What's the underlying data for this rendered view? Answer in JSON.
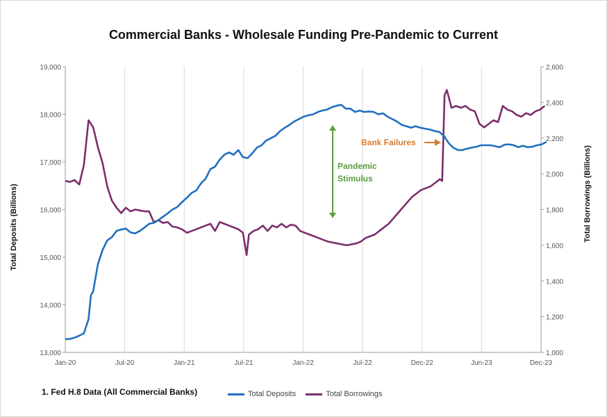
{
  "chart_data": {
    "type": "line",
    "title": "Commercial Banks - Wholesale Funding Pre-Pandemic to Current",
    "ylabel_left": "Total Deposits (Billions)",
    "ylabel_right": "Total Borrowings (Billions)",
    "footnote": "1. Fed H.8 Data (All Commercial Banks)",
    "x_ticks": [
      "Jan-20",
      "Jul-20",
      "Jan-21",
      "Jul-21",
      "Jan-22",
      "Jul-22",
      "Dec-22",
      "Jun-23",
      "Dec-23"
    ],
    "y_left": {
      "min": 13000,
      "max": 19000,
      "ticks": [
        "13,000",
        "14,000",
        "15,000",
        "16,000",
        "17,000",
        "18,000",
        "19,000"
      ]
    },
    "y_right": {
      "min": 1000,
      "max": 2600,
      "ticks": [
        "1,000",
        "1,200",
        "1,400",
        "1,600",
        "1,800",
        "2,000",
        "2,200",
        "2,400",
        "2,600"
      ]
    },
    "grid": "vertical",
    "legend": "bottom",
    "series": [
      {
        "name": "Total Deposits",
        "axis": "left",
        "color": "#1f6fbf",
        "points": [
          [
            "2020-01-01",
            13280
          ],
          [
            "2020-01-15",
            13280
          ],
          [
            "2020-01-29",
            13310
          ],
          [
            "2020-02-12",
            13350
          ],
          [
            "2020-02-26",
            13400
          ],
          [
            "2020-03-11",
            13700
          ],
          [
            "2020-03-18",
            14200
          ],
          [
            "2020-03-25",
            14280
          ],
          [
            "2020-04-08",
            14850
          ],
          [
            "2020-04-22",
            15150
          ],
          [
            "2020-05-06",
            15350
          ],
          [
            "2020-05-20",
            15420
          ],
          [
            "2020-06-03",
            15550
          ],
          [
            "2020-06-17",
            15580
          ],
          [
            "2020-07-01",
            15600
          ],
          [
            "2020-07-15",
            15520
          ],
          [
            "2020-07-29",
            15500
          ],
          [
            "2020-08-12",
            15550
          ],
          [
            "2020-08-26",
            15620
          ],
          [
            "2020-09-09",
            15700
          ],
          [
            "2020-09-23",
            15720
          ],
          [
            "2020-10-07",
            15780
          ],
          [
            "2020-10-21",
            15850
          ],
          [
            "2020-11-04",
            15920
          ],
          [
            "2020-11-18",
            16000
          ],
          [
            "2020-12-02",
            16050
          ],
          [
            "2020-12-16",
            16150
          ],
          [
            "2021-01-01",
            16250
          ],
          [
            "2021-01-15",
            16350
          ],
          [
            "2021-01-29",
            16400
          ],
          [
            "2021-02-12",
            16550
          ],
          [
            "2021-02-26",
            16650
          ],
          [
            "2021-03-12",
            16850
          ],
          [
            "2021-03-26",
            16900
          ],
          [
            "2021-04-09",
            17050
          ],
          [
            "2021-04-23",
            17150
          ],
          [
            "2021-05-07",
            17200
          ],
          [
            "2021-05-21",
            17150
          ],
          [
            "2021-06-04",
            17250
          ],
          [
            "2021-06-18",
            17100
          ],
          [
            "2021-07-02",
            17080
          ],
          [
            "2021-07-16",
            17180
          ],
          [
            "2021-07-30",
            17300
          ],
          [
            "2021-08-13",
            17350
          ],
          [
            "2021-08-27",
            17450
          ],
          [
            "2021-09-10",
            17500
          ],
          [
            "2021-09-24",
            17550
          ],
          [
            "2021-10-08",
            17650
          ],
          [
            "2021-10-22",
            17720
          ],
          [
            "2021-11-05",
            17780
          ],
          [
            "2021-11-19",
            17850
          ],
          [
            "2021-12-03",
            17900
          ],
          [
            "2021-12-17",
            17950
          ],
          [
            "2022-01-01",
            17980
          ],
          [
            "2022-01-15",
            18000
          ],
          [
            "2022-01-29",
            18050
          ],
          [
            "2022-02-12",
            18080
          ],
          [
            "2022-02-26",
            18100
          ],
          [
            "2022-03-12",
            18150
          ],
          [
            "2022-03-26",
            18180
          ],
          [
            "2022-04-09",
            18200
          ],
          [
            "2022-04-23",
            18120
          ],
          [
            "2022-05-07",
            18120
          ],
          [
            "2022-05-21",
            18050
          ],
          [
            "2022-06-04",
            18080
          ],
          [
            "2022-06-18",
            18050
          ],
          [
            "2022-07-02",
            18060
          ],
          [
            "2022-07-16",
            18050
          ],
          [
            "2022-07-30",
            18000
          ],
          [
            "2022-08-13",
            18020
          ],
          [
            "2022-08-27",
            17950
          ],
          [
            "2022-09-10",
            17900
          ],
          [
            "2022-09-24",
            17850
          ],
          [
            "2022-10-08",
            17780
          ],
          [
            "2022-10-22",
            17750
          ],
          [
            "2022-11-05",
            17720
          ],
          [
            "2022-11-19",
            17750
          ],
          [
            "2022-12-03",
            17720
          ],
          [
            "2022-12-17",
            17700
          ],
          [
            "2023-01-01",
            17680
          ],
          [
            "2023-01-15",
            17650
          ],
          [
            "2023-01-29",
            17630
          ],
          [
            "2023-02-12",
            17550
          ],
          [
            "2023-02-26",
            17400
          ],
          [
            "2023-03-12",
            17300
          ],
          [
            "2023-03-26",
            17250
          ],
          [
            "2023-04-09",
            17250
          ],
          [
            "2023-04-23",
            17280
          ],
          [
            "2023-05-07",
            17300
          ],
          [
            "2023-05-21",
            17320
          ],
          [
            "2023-06-04",
            17350
          ],
          [
            "2023-06-18",
            17350
          ],
          [
            "2023-07-02",
            17350
          ],
          [
            "2023-07-16",
            17330
          ],
          [
            "2023-07-30",
            17310
          ],
          [
            "2023-08-13",
            17360
          ],
          [
            "2023-08-27",
            17370
          ],
          [
            "2023-09-10",
            17350
          ],
          [
            "2023-09-24",
            17310
          ],
          [
            "2023-10-08",
            17340
          ],
          [
            "2023-10-22",
            17310
          ],
          [
            "2023-11-05",
            17320
          ],
          [
            "2023-11-19",
            17350
          ],
          [
            "2023-12-03",
            17370
          ],
          [
            "2023-12-17",
            17420
          ]
        ]
      },
      {
        "name": "Total Borrowings",
        "axis": "right",
        "color": "#7b2d6b",
        "points": [
          [
            "2020-01-01",
            1960
          ],
          [
            "2020-01-15",
            1955
          ],
          [
            "2020-01-29",
            1965
          ],
          [
            "2020-02-12",
            1940
          ],
          [
            "2020-02-26",
            2050
          ],
          [
            "2020-03-11",
            2300
          ],
          [
            "2020-03-25",
            2260
          ],
          [
            "2020-04-08",
            2150
          ],
          [
            "2020-04-22",
            2060
          ],
          [
            "2020-05-06",
            1930
          ],
          [
            "2020-05-20",
            1850
          ],
          [
            "2020-06-03",
            1810
          ],
          [
            "2020-06-17",
            1780
          ],
          [
            "2020-07-01",
            1810
          ],
          [
            "2020-07-15",
            1790
          ],
          [
            "2020-07-29",
            1800
          ],
          [
            "2020-08-12",
            1795
          ],
          [
            "2020-08-26",
            1790
          ],
          [
            "2020-09-09",
            1790
          ],
          [
            "2020-09-23",
            1730
          ],
          [
            "2020-10-07",
            1740
          ],
          [
            "2020-10-21",
            1725
          ],
          [
            "2020-11-04",
            1730
          ],
          [
            "2020-11-18",
            1705
          ],
          [
            "2020-12-02",
            1700
          ],
          [
            "2020-12-16",
            1690
          ],
          [
            "2021-01-01",
            1670
          ],
          [
            "2021-01-15",
            1680
          ],
          [
            "2021-01-29",
            1690
          ],
          [
            "2021-02-12",
            1700
          ],
          [
            "2021-02-26",
            1710
          ],
          [
            "2021-03-12",
            1720
          ],
          [
            "2021-03-26",
            1680
          ],
          [
            "2021-04-09",
            1730
          ],
          [
            "2021-04-23",
            1720
          ],
          [
            "2021-05-07",
            1710
          ],
          [
            "2021-05-21",
            1700
          ],
          [
            "2021-06-04",
            1690
          ],
          [
            "2021-06-18",
            1670
          ],
          [
            "2021-06-29",
            1545
          ],
          [
            "2021-07-06",
            1660
          ],
          [
            "2021-07-20",
            1680
          ],
          [
            "2021-08-03",
            1690
          ],
          [
            "2021-08-17",
            1710
          ],
          [
            "2021-08-31",
            1680
          ],
          [
            "2021-09-14",
            1710
          ],
          [
            "2021-09-28",
            1700
          ],
          [
            "2021-10-12",
            1720
          ],
          [
            "2021-10-26",
            1700
          ],
          [
            "2021-11-09",
            1715
          ],
          [
            "2021-11-23",
            1710
          ],
          [
            "2021-12-07",
            1680
          ],
          [
            "2021-12-21",
            1670
          ],
          [
            "2022-01-04",
            1660
          ],
          [
            "2022-01-18",
            1650
          ],
          [
            "2022-02-01",
            1640
          ],
          [
            "2022-02-15",
            1630
          ],
          [
            "2022-03-01",
            1620
          ],
          [
            "2022-03-15",
            1615
          ],
          [
            "2022-03-29",
            1610
          ],
          [
            "2022-04-12",
            1605
          ],
          [
            "2022-04-26",
            1600
          ],
          [
            "2022-05-10",
            1605
          ],
          [
            "2022-05-24",
            1610
          ],
          [
            "2022-06-07",
            1620
          ],
          [
            "2022-06-21",
            1640
          ],
          [
            "2022-07-05",
            1650
          ],
          [
            "2022-07-19",
            1660
          ],
          [
            "2022-08-02",
            1680
          ],
          [
            "2022-08-16",
            1700
          ],
          [
            "2022-08-30",
            1720
          ],
          [
            "2022-09-13",
            1750
          ],
          [
            "2022-09-27",
            1780
          ],
          [
            "2022-10-11",
            1810
          ],
          [
            "2022-10-25",
            1840
          ],
          [
            "2022-11-08",
            1870
          ],
          [
            "2022-11-22",
            1890
          ],
          [
            "2022-12-06",
            1910
          ],
          [
            "2022-12-20",
            1920
          ],
          [
            "2023-01-03",
            1930
          ],
          [
            "2023-01-17",
            1950
          ],
          [
            "2023-01-31",
            1970
          ],
          [
            "2023-02-07",
            1960
          ],
          [
            "2023-02-14",
            2440
          ],
          [
            "2023-02-21",
            2470
          ],
          [
            "2023-03-07",
            2370
          ],
          [
            "2023-03-21",
            2380
          ],
          [
            "2023-04-04",
            2370
          ],
          [
            "2023-04-18",
            2380
          ],
          [
            "2023-05-02",
            2360
          ],
          [
            "2023-05-16",
            2350
          ],
          [
            "2023-05-30",
            2280
          ],
          [
            "2023-06-13",
            2260
          ],
          [
            "2023-06-27",
            2280
          ],
          [
            "2023-07-11",
            2300
          ],
          [
            "2023-07-25",
            2290
          ],
          [
            "2023-08-08",
            2380
          ],
          [
            "2023-08-22",
            2360
          ],
          [
            "2023-09-05",
            2350
          ],
          [
            "2023-09-19",
            2330
          ],
          [
            "2023-10-03",
            2320
          ],
          [
            "2023-10-17",
            2340
          ],
          [
            "2023-10-31",
            2330
          ],
          [
            "2023-11-14",
            2350
          ],
          [
            "2023-11-28",
            2360
          ],
          [
            "2023-12-12",
            2380
          ]
        ]
      }
    ],
    "annotations": [
      {
        "label": "Pandemic\nStimulus",
        "color": "#5a9e3a",
        "line1": "Pandemic",
        "line2": "Stimulus"
      },
      {
        "label": "Bank Failures",
        "color": "#d67b32"
      }
    ]
  }
}
